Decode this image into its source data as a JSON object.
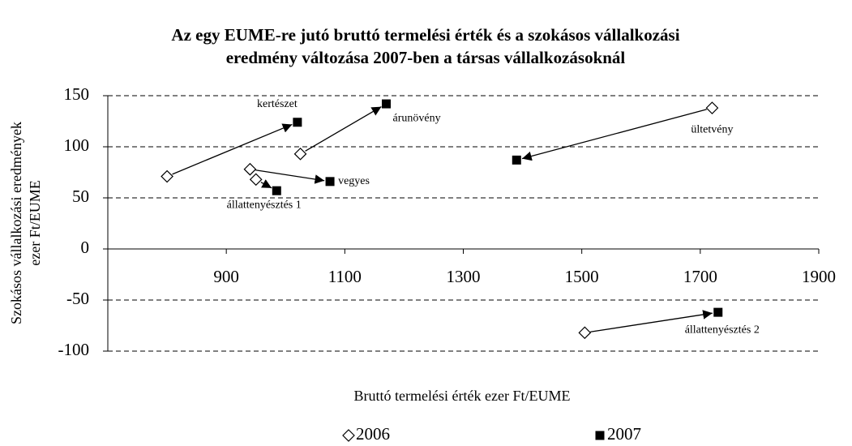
{
  "chart_data": {
    "type": "scatter",
    "title": [
      "Az egy EUME-re jutó bruttó termelési érték és a szokásos vállalkozási",
      "eredmény változása 2007-ben a társas vállalkozásoknál"
    ],
    "x_label": "Bruttó termelési érték ezer Ft/EUME",
    "y_label": [
      "Szokásos vállalkozási eredmények",
      "ezer Ft/EUME"
    ],
    "labels": [
      "kertészet",
      "árunövény",
      "vegyes",
      "állattenyésztés 1",
      "ültetvény",
      "állattenyésztés 2"
    ],
    "series": [
      {
        "name": "2006",
        "color": "#000000",
        "marker": "diamond",
        "x": [
          800,
          1025,
          940,
          950,
          1720,
          1505
        ],
        "values": [
          71,
          93,
          78,
          68,
          138,
          -82
        ]
      },
      {
        "name": "2007",
        "color": "#000000",
        "marker": "square",
        "x": [
          1020,
          1170,
          1075,
          985,
          1390,
          1730
        ],
        "values": [
          124,
          142,
          66,
          57,
          87,
          -62
        ]
      }
    ],
    "xlim": [
      700,
      1900
    ],
    "xticks": [
      900,
      1100,
      1300,
      1500,
      1700,
      1900
    ],
    "ylim": [
      -100,
      150
    ],
    "yticks": [
      -100,
      -50,
      0,
      50,
      100,
      150
    ],
    "grid": true,
    "legend": "bottom"
  }
}
